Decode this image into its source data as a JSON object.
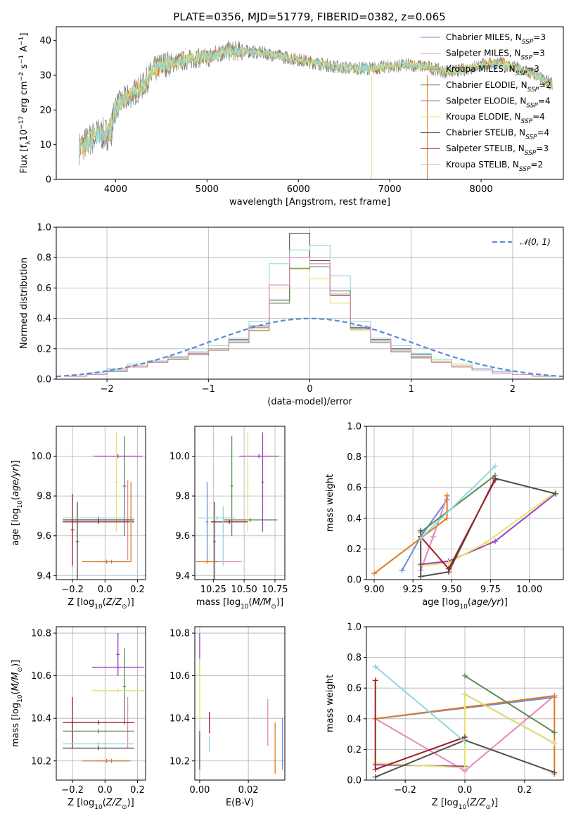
{
  "title": "PLATE=0356, MJD=51779, FIBERID=0382, z=0.065",
  "colors": {
    "Chabrier MILES": "#6a8bd8",
    "Salpeter MILES": "#e887b8",
    "Kroupa MILES": "#e07b21",
    "Chabrier ELODIE": "#5e8a55",
    "Salpeter ELODIE": "#9b3fbd",
    "Kroupa ELODIE": "#e4e46a",
    "Chabrier STELIB": "#505050",
    "Salpeter STELIB": "#a11d20",
    "Kroupa STELIB": "#8fd8e0",
    "normal": "#5b8ad8",
    "spectrum": "#808080"
  },
  "legend_models": [
    {
      "label": "Chabrier MILES, N",
      "sub": "SSP",
      "tail": "=3",
      "key": "Chabrier MILES"
    },
    {
      "label": "Salpeter MILES, N",
      "sub": "SSP",
      "tail": "=3",
      "key": "Salpeter MILES"
    },
    {
      "label": "Kroupa MILES, N",
      "sub": "SSP",
      "tail": "=3",
      "key": "Kroupa MILES"
    },
    {
      "label": "Chabrier ELODIE, N",
      "sub": "SSP",
      "tail": "=2",
      "key": "Chabrier ELODIE"
    },
    {
      "label": "Salpeter ELODIE, N",
      "sub": "SSP",
      "tail": "=4",
      "key": "Salpeter ELODIE"
    },
    {
      "label": "Kroupa ELODIE, N",
      "sub": "SSP",
      "tail": "=4",
      "key": "Kroupa ELODIE"
    },
    {
      "label": "Chabrier STELIB, N",
      "sub": "SSP",
      "tail": "=4",
      "key": "Chabrier STELIB"
    },
    {
      "label": "Salpeter STELIB, N",
      "sub": "SSP",
      "tail": "=3",
      "key": "Salpeter STELIB"
    },
    {
      "label": "Kroupa STELIB, N",
      "sub": "SSP",
      "tail": "=2",
      "key": "Kroupa STELIB"
    }
  ],
  "chart_data": [
    {
      "type": "line",
      "xlabel": "wavelength [Angstrom, rest frame]",
      "ylabel": "Flux [f_λ10^-17 erg cm^-2 s^-1 A^-1]",
      "xlim": [
        3350,
        8900
      ],
      "ylim": [
        0,
        44
      ],
      "xticks": [
        "4000",
        "5000",
        "6000",
        "7000",
        "8000"
      ],
      "yticks": [
        "0",
        "10",
        "20",
        "30",
        "40"
      ],
      "continuum": {
        "x": [
          3600,
          3700,
          3800,
          3900,
          3950,
          4000,
          4100,
          4200,
          4300,
          4400,
          4500,
          4600,
          4700,
          4800,
          4900,
          5000,
          5200,
          5400,
          5600,
          5800,
          6000,
          6200,
          6400,
          6600,
          6800,
          7000,
          7200,
          7400,
          7600,
          7800,
          8000,
          8200,
          8400,
          8600,
          8800
        ],
        "y": [
          9,
          11,
          13,
          13,
          14,
          21,
          23,
          25,
          27,
          31,
          33,
          33.5,
          34,
          34.5,
          35,
          35,
          37,
          37,
          36.5,
          35.5,
          34.5,
          33.5,
          32.5,
          32,
          32,
          32.5,
          33,
          32.5,
          31,
          31.5,
          33,
          33.5,
          32,
          30,
          27
        ]
      },
      "grid": false,
      "legend": "upper right"
    },
    {
      "type": "step",
      "xlabel": "(data-model)/error",
      "ylabel": "Normed distribution",
      "xlim": [
        -2.5,
        2.5
      ],
      "ylim": [
        0,
        1.0
      ],
      "xticks": [
        "−2",
        "−1",
        "0",
        "1",
        "2"
      ],
      "yticks": [
        "0.0",
        "0.2",
        "0.4",
        "0.6",
        "0.8",
        "1.0"
      ],
      "bin_centers": [
        -2.3,
        -2.1,
        -1.9,
        -1.7,
        -1.5,
        -1.3,
        -1.1,
        -0.9,
        -0.7,
        -0.5,
        -0.3,
        -0.1,
        0.1,
        0.3,
        0.5,
        0.7,
        0.9,
        1.1,
        1.3,
        1.5,
        1.7,
        1.9,
        2.1,
        2.3
      ],
      "series": [
        {
          "name": "Chabrier STELIB",
          "values": [
            0.02,
            0.04,
            0.06,
            0.09,
            0.12,
            0.14,
            0.17,
            0.2,
            0.26,
            0.35,
            0.52,
            0.96,
            0.78,
            0.55,
            0.33,
            0.26,
            0.2,
            0.16,
            0.12,
            0.09,
            0.07,
            0.05,
            0.03,
            0.02
          ]
        },
        {
          "name": "Kroupa STELIB",
          "values": [
            0.02,
            0.04,
            0.07,
            0.1,
            0.12,
            0.15,
            0.18,
            0.22,
            0.27,
            0.38,
            0.76,
            0.85,
            0.88,
            0.68,
            0.38,
            0.27,
            0.22,
            0.17,
            0.13,
            0.1,
            0.07,
            0.05,
            0.03,
            0.02
          ]
        },
        {
          "name": "Kroupa ELODIE",
          "values": [
            0.02,
            0.03,
            0.06,
            0.09,
            0.11,
            0.14,
            0.16,
            0.2,
            0.25,
            0.33,
            0.6,
            0.72,
            0.66,
            0.5,
            0.32,
            0.25,
            0.19,
            0.15,
            0.12,
            0.09,
            0.06,
            0.04,
            0.03,
            0.02
          ]
        },
        {
          "name": "Chabrier ELODIE",
          "values": [
            0.02,
            0.03,
            0.05,
            0.08,
            0.11,
            0.13,
            0.16,
            0.19,
            0.24,
            0.32,
            0.5,
            0.73,
            0.74,
            0.58,
            0.34,
            0.24,
            0.18,
            0.14,
            0.11,
            0.08,
            0.06,
            0.04,
            0.03,
            0.02
          ]
        },
        {
          "name": "Salpeter MILES",
          "values": [
            0.02,
            0.03,
            0.06,
            0.08,
            0.11,
            0.14,
            0.17,
            0.2,
            0.25,
            0.34,
            0.62,
            0.8,
            0.76,
            0.56,
            0.35,
            0.25,
            0.19,
            0.15,
            0.11,
            0.08,
            0.06,
            0.04,
            0.03,
            0.02
          ]
        }
      ],
      "normal": {
        "name": "𝒩(0, 1)",
        "mean": 0,
        "sigma": 1
      },
      "grid": true,
      "legend": "upper right"
    },
    {
      "type": "scatter",
      "xlabel": "Z [log10(Z/Z☉)]",
      "ylabel": "age  [log10(age/yr)]",
      "xlim": [
        -0.3,
        0.25
      ],
      "ylim": [
        9.38,
        10.15
      ],
      "xticks": [
        "−0.2",
        "0.0",
        "0.2"
      ],
      "yticks": [
        "9.4",
        "9.6",
        "9.8",
        "10.0"
      ],
      "points": [
        {
          "name": "Chabrier MILES",
          "x": 0.04,
          "xerr": 0.1,
          "y": 9.47,
          "yerr": 0.01
        },
        {
          "name": "Salpeter MILES",
          "x": 0.14,
          "xerr": 0.01,
          "y": 9.68,
          "yerr": 0.2
        },
        {
          "name": "Kroupa MILES",
          "x": 0.01,
          "xerr": 0.15,
          "y": 9.47,
          "yerr": 0.01
        },
        {
          "name": "Chabrier ELODIE",
          "x": 0.12,
          "xerr": 0.01,
          "y": 9.85,
          "yerr": 0.25
        },
        {
          "name": "Salpeter ELODIE",
          "x": 0.08,
          "xerr": 0.15,
          "y": 10.0,
          "yerr": 0.01
        },
        {
          "name": "Kroupa ELODIE",
          "x": 0.07,
          "xerr": 0.01,
          "y": 9.87,
          "yerr": 0.25
        },
        {
          "name": "Chabrier STELIB",
          "x": -0.17,
          "xerr": 0.01,
          "y": 9.57,
          "yerr": 0.2
        },
        {
          "name": "Salpeter STELIB",
          "x": -0.2,
          "xerr": 0.01,
          "y": 9.63,
          "yerr": 0.18
        },
        {
          "name": "Salpeter STELIB",
          "x": -0.04,
          "xerr": 0.22,
          "y": 9.67,
          "yerr": 0.01
        },
        {
          "name": "Kroupa STELIB",
          "x": -0.04,
          "xerr": 0.22,
          "y": 9.69,
          "yerr": 0.01
        },
        {
          "name": "Chabrier STELIB",
          "x": -0.04,
          "xerr": 0.22,
          "y": 9.68,
          "yerr": 0.01
        },
        {
          "name": "Kroupa MILES",
          "x": 0.16,
          "xerr": 0.01,
          "y": 9.67,
          "yerr": 0.2
        }
      ],
      "grid": true
    },
    {
      "type": "scatter",
      "xlabel": "mass [log10(M/M☉)]",
      "ylabel": "",
      "xlim": [
        10.1,
        10.83
      ],
      "ylim": [
        9.38,
        10.15
      ],
      "xticks": [
        "10.25",
        "10.50",
        "10.75"
      ],
      "yticks": [
        "9.4",
        "9.6",
        "9.8",
        "10.0"
      ],
      "points": [
        {
          "name": "Chabrier MILES",
          "x": 10.2,
          "xerr": 0.01,
          "y": 9.67,
          "yerr": 0.2
        },
        {
          "name": "Salpeter MILES",
          "x": 10.33,
          "xerr": 0.15,
          "y": 9.47,
          "yerr": 0.01
        },
        {
          "name": "Kroupa MILES",
          "x": 10.2,
          "xerr": 0.09,
          "y": 9.47,
          "yerr": 0.01
        },
        {
          "name": "Chabrier ELODIE",
          "x": 10.4,
          "xerr": 0.01,
          "y": 9.85,
          "yerr": 0.25
        },
        {
          "name": "Chabrier ELODIE",
          "x": 10.55,
          "xerr": 0.22,
          "y": 9.68,
          "yerr": 0.01
        },
        {
          "name": "Salpeter ELODIE",
          "x": 10.65,
          "xerr": 0.01,
          "y": 9.87,
          "yerr": 0.25
        },
        {
          "name": "Salpeter ELODIE",
          "x": 10.62,
          "xerr": 0.16,
          "y": 10.0,
          "yerr": 0.01
        },
        {
          "name": "Kroupa ELODIE",
          "x": 10.53,
          "xerr": 0.01,
          "y": 9.87,
          "yerr": 0.25
        },
        {
          "name": "Chabrier STELIB",
          "x": 10.26,
          "xerr": 0.01,
          "y": 9.57,
          "yerr": 0.2
        },
        {
          "name": "Salpeter STELIB",
          "x": 10.38,
          "xerr": 0.15,
          "y": 9.67,
          "yerr": 0.01
        },
        {
          "name": "Kroupa STELIB",
          "x": 10.28,
          "xerr": 0.15,
          "y": 9.69,
          "yerr": 0.01
        },
        {
          "name": "Kroupa STELIB",
          "x": 10.33,
          "xerr": 0.01,
          "y": 9.6,
          "yerr": 0.15
        }
      ],
      "grid": true
    },
    {
      "type": "line",
      "xlabel": "age  [log10(age/yr)]",
      "ylabel": "mass weight",
      "xlim": [
        8.95,
        10.22
      ],
      "ylim": [
        0.0,
        1.0
      ],
      "xticks": [
        "9.00",
        "9.25",
        "9.50",
        "9.75",
        "10.00"
      ],
      "yticks": [
        "0.0",
        "0.2",
        "0.4",
        "0.6",
        "0.8",
        "1.0"
      ],
      "series": [
        {
          "name": "Chabrier MILES",
          "x": [
            9.18,
            9.3,
            9.47
          ],
          "y": [
            0.06,
            0.28,
            0.52
          ]
        },
        {
          "name": "Salpeter MILES",
          "x": [
            9.3,
            9.38,
            9.47
          ],
          "y": [
            0.06,
            0.28,
            0.54
          ]
        },
        {
          "name": "Kroupa MILES",
          "x": [
            9.0,
            9.3,
            9.47,
            9.47
          ],
          "y": [
            0.04,
            0.27,
            0.4,
            0.55
          ]
        },
        {
          "name": "Chabrier ELODIE",
          "x": [
            9.3,
            9.78
          ],
          "y": [
            0.31,
            0.68
          ]
        },
        {
          "name": "Salpeter ELODIE",
          "x": [
            9.3,
            9.48,
            9.78,
            10.17
          ],
          "y": [
            0.1,
            0.12,
            0.25,
            0.56
          ]
        },
        {
          "name": "Kroupa ELODIE",
          "x": [
            9.3,
            9.48,
            9.72,
            10.17
          ],
          "y": [
            0.09,
            0.11,
            0.24,
            0.57
          ]
        },
        {
          "name": "Chabrier STELIB",
          "x": [
            9.3,
            9.3,
            9.48,
            9.78,
            10.17
          ],
          "y": [
            0.32,
            0.02,
            0.05,
            0.66,
            0.56
          ]
        },
        {
          "name": "Salpeter STELIB",
          "x": [
            9.3,
            9.48,
            9.78
          ],
          "y": [
            0.28,
            0.07,
            0.65
          ]
        },
        {
          "name": "Kroupa STELIB",
          "x": [
            9.3,
            9.78
          ],
          "y": [
            0.27,
            0.74
          ]
        }
      ],
      "grid": true
    },
    {
      "type": "scatter",
      "xlabel": "Z [log10(Z/Z☉)]",
      "ylabel": "mass [log10(M/M☉)]",
      "xlim": [
        -0.3,
        0.25
      ],
      "ylim": [
        10.11,
        10.83
      ],
      "xticks": [
        "−0.2",
        "0.0",
        "0.2"
      ],
      "yticks": [
        "10.2",
        "10.4",
        "10.6",
        "10.8"
      ],
      "points": [
        {
          "name": "Chabrier MILES",
          "x": 0.04,
          "xerr": 0.1,
          "y": 10.2,
          "yerr": 0.01
        },
        {
          "name": "Salpeter MILES",
          "x": 0.14,
          "xerr": 0.01,
          "y": 10.38,
          "yerr": 0.12
        },
        {
          "name": "Kroupa MILES",
          "x": 0.01,
          "xerr": 0.15,
          "y": 10.2,
          "yerr": 0.01
        },
        {
          "name": "Chabrier ELODIE",
          "x": 0.12,
          "xerr": 0.01,
          "y": 10.55,
          "yerr": 0.18
        },
        {
          "name": "Salpeter ELODIE",
          "x": 0.08,
          "xerr": 0.01,
          "y": 10.7,
          "yerr": 0.1
        },
        {
          "name": "Salpeter ELODIE",
          "x": 0.08,
          "xerr": 0.16,
          "y": 10.64,
          "yerr": 0.01
        },
        {
          "name": "Kroupa ELODIE",
          "x": 0.08,
          "xerr": 0.16,
          "y": 10.53,
          "yerr": 0.01
        },
        {
          "name": "Chabrier STELIB",
          "x": -0.04,
          "xerr": 0.22,
          "y": 10.26,
          "yerr": 0.01
        },
        {
          "name": "Salpeter STELIB",
          "x": -0.04,
          "xerr": 0.22,
          "y": 10.38,
          "yerr": 0.01
        },
        {
          "name": "Salpeter STELIB",
          "x": -0.2,
          "xerr": 0.01,
          "y": 10.38,
          "yerr": 0.12
        },
        {
          "name": "Kroupa STELIB",
          "x": -0.04,
          "xerr": 0.22,
          "y": 10.28,
          "yerr": 0.01
        },
        {
          "name": "Chabrier ELODIE",
          "x": -0.04,
          "xerr": 0.22,
          "y": 10.34,
          "yerr": 0.01
        }
      ],
      "grid": true
    },
    {
      "type": "scatter",
      "xlabel": "E(B-V)",
      "ylabel": "",
      "xlim": [
        -0.002,
        0.035
      ],
      "ylim": [
        10.11,
        10.83
      ],
      "xticks": [
        "0.00",
        "0.02"
      ],
      "yticks": [
        "10.2",
        "10.4",
        "10.6",
        "10.8"
      ],
      "points": [
        {
          "name": "Salpeter ELODIE",
          "x": 0.0,
          "y": 10.7,
          "yerr": 0.1
        },
        {
          "name": "Kroupa ELODIE",
          "x": 0.0,
          "y": 10.53,
          "yerr": 0.15
        },
        {
          "name": "Chabrier STELIB",
          "x": 0.0,
          "y": 10.25,
          "yerr": 0.09
        },
        {
          "name": "Salpeter STELIB",
          "x": 0.004,
          "y": 10.38,
          "yerr": 0.05
        },
        {
          "name": "Kroupa STELIB",
          "x": 0.004,
          "y": 10.28,
          "yerr": 0.04
        },
        {
          "name": "Salpeter MILES",
          "x": 0.028,
          "y": 10.38,
          "yerr": 0.11
        },
        {
          "name": "Kroupa MILES",
          "x": 0.031,
          "y": 10.26,
          "yerr": 0.12
        },
        {
          "name": "Chabrier MILES",
          "x": 0.034,
          "y": 10.28,
          "yerr": 0.12
        }
      ],
      "grid": true
    },
    {
      "type": "line",
      "xlabel": "Z [log10(Z/Z☉)]",
      "ylabel": "mass weight",
      "xlim": [
        -0.33,
        0.33
      ],
      "ylim": [
        0.0,
        1.0
      ],
      "xticks": [
        "−0.2",
        "0.0",
        "0.2"
      ],
      "yticks": [
        "0.0",
        "0.2",
        "0.4",
        "0.6",
        "0.8",
        "1.0"
      ],
      "series": [
        {
          "name": "Chabrier MILES",
          "x": [
            -0.3,
            0.3
          ],
          "y": [
            0.4,
            0.54
          ]
        },
        {
          "name": "Salpeter MILES",
          "x": [
            -0.3,
            0.0,
            0.3
          ],
          "y": [
            0.4,
            0.06,
            0.55
          ]
        },
        {
          "name": "Kroupa MILES",
          "x": [
            -0.3,
            0.3,
            0.3
          ],
          "y": [
            0.4,
            0.55,
            0.04
          ]
        },
        {
          "name": "Chabrier ELODIE",
          "x": [
            0.0,
            0.3
          ],
          "y": [
            0.68,
            0.31
          ]
        },
        {
          "name": "Salpeter ELODIE",
          "x": [
            -0.3,
            0.0,
            0.0,
            0.3
          ],
          "y": [
            0.1,
            0.09,
            0.56,
            0.24
          ]
        },
        {
          "name": "Kroupa ELODIE",
          "x": [
            -0.3,
            0.0,
            0.0,
            0.3
          ],
          "y": [
            0.11,
            0.08,
            0.56,
            0.24
          ]
        },
        {
          "name": "Chabrier STELIB",
          "x": [
            -0.3,
            0.0,
            0.3
          ],
          "y": [
            0.02,
            0.26,
            0.05
          ]
        },
        {
          "name": "Salpeter STELIB",
          "x": [
            -0.3,
            -0.3,
            0.0
          ],
          "y": [
            0.65,
            0.07,
            0.28
          ]
        },
        {
          "name": "Kroupa STELIB",
          "x": [
            -0.3,
            0.0
          ],
          "y": [
            0.74,
            0.25
          ]
        }
      ],
      "grid": true
    }
  ]
}
